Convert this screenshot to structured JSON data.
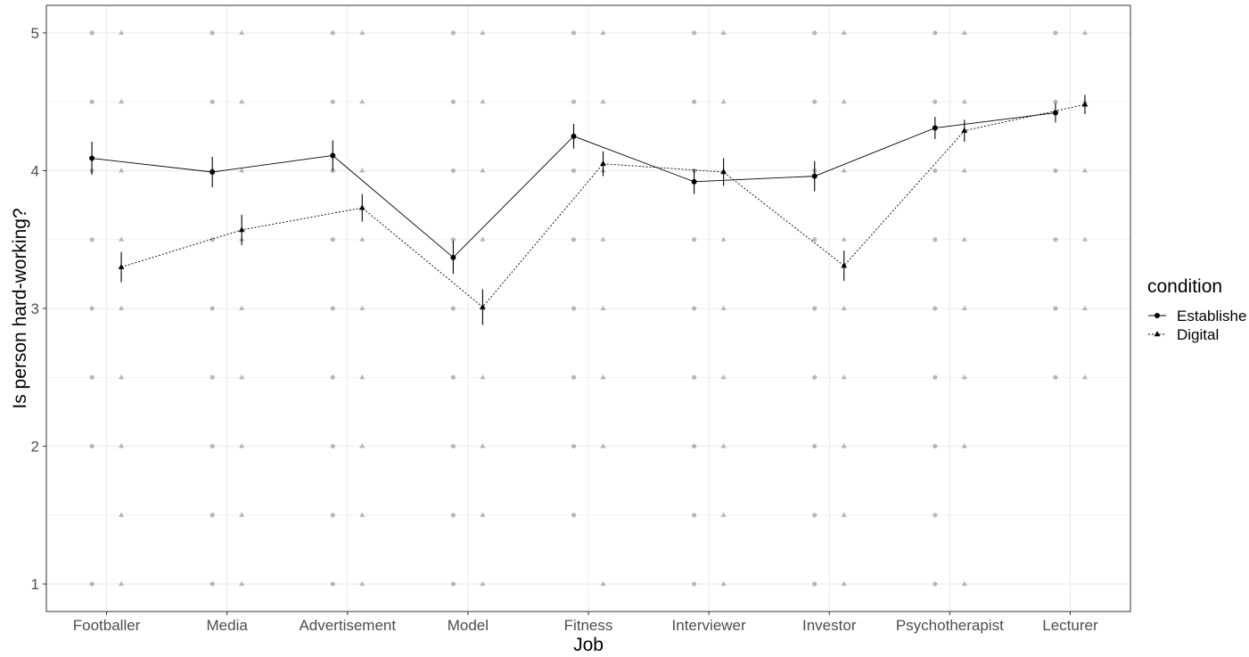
{
  "chart_data": {
    "type": "line",
    "title": "",
    "xlabel": "Job",
    "ylabel": "Is person hard-working?",
    "categories": [
      "Footballer",
      "Media",
      "Advertisement",
      "Model",
      "Fitness",
      "Interviewer",
      "Investor",
      "Psychotherapist",
      "Lecturer"
    ],
    "ylim": [
      0.8,
      5.2
    ],
    "yticks": [
      1,
      2,
      3,
      4,
      5
    ],
    "grid": true,
    "legend": {
      "title": "condition",
      "position": "right"
    },
    "series": [
      {
        "name": "Establishe",
        "marker": "circle",
        "line_style": "solid",
        "values": [
          4.09,
          3.99,
          4.11,
          3.37,
          4.25,
          3.92,
          3.96,
          4.31,
          4.42
        ],
        "error": [
          0.12,
          0.11,
          0.11,
          0.12,
          0.09,
          0.09,
          0.11,
          0.08,
          0.07
        ]
      },
      {
        "name": "Digital",
        "marker": "triangle",
        "line_style": "dotted",
        "values": [
          3.3,
          3.57,
          3.73,
          3.01,
          4.05,
          3.99,
          3.31,
          4.29,
          4.48
        ],
        "error": [
          0.11,
          0.11,
          0.1,
          0.13,
          0.09,
          0.1,
          0.11,
          0.08,
          0.07
        ]
      }
    ],
    "raw_points": {
      "Establishe": [
        [
          1,
          2,
          2.5,
          3,
          3.5,
          4,
          4.5,
          5
        ],
        [
          1,
          1.5,
          2,
          2.5,
          3,
          3.5,
          4,
          4.5,
          5
        ],
        [
          1,
          1.5,
          2,
          2.5,
          3,
          3.5,
          4,
          4.5,
          5
        ],
        [
          1,
          1.5,
          2,
          2.5,
          3,
          3.5,
          4,
          4.5,
          5
        ],
        [
          1.5,
          2,
          2.5,
          3,
          3.5,
          4,
          4.5,
          5
        ],
        [
          1,
          1.5,
          2,
          2.5,
          3,
          3.5,
          4,
          4.5,
          5
        ],
        [
          1,
          1.5,
          2,
          2.5,
          3,
          3.5,
          4,
          4.5,
          5
        ],
        [
          1,
          1.5,
          2,
          2.5,
          3,
          3.5,
          4,
          4.5,
          5
        ],
        [
          2.5,
          3,
          3.5,
          4,
          4.5,
          5
        ]
      ],
      "Digital": [
        [
          1,
          1.5,
          2,
          2.5,
          3,
          3.5,
          4,
          4.5,
          5
        ],
        [
          1,
          1.5,
          2,
          2.5,
          3,
          3.5,
          4,
          4.5,
          5
        ],
        [
          1,
          1.5,
          2,
          2.5,
          3,
          3.5,
          4,
          4.5,
          5
        ],
        [
          1,
          1.5,
          2,
          2.5,
          3,
          3.5,
          4,
          4.5,
          5
        ],
        [
          1,
          2,
          2.5,
          3,
          3.5,
          4,
          4.5,
          5
        ],
        [
          1,
          1.5,
          2,
          2.5,
          3,
          3.5,
          4,
          4.5,
          5
        ],
        [
          1,
          1.5,
          2,
          2.5,
          3,
          3.5,
          4,
          4.5,
          5
        ],
        [
          1,
          2,
          2.5,
          3,
          3.5,
          4,
          4.5,
          5
        ],
        [
          2.5,
          3,
          3.5,
          4,
          4.5,
          5
        ]
      ]
    },
    "colors": {
      "line": "#000000",
      "raw_point": "#7f7f7f",
      "grid": "#ebebeb",
      "panel_border": "#333333",
      "tick_text": "#4d4d4d"
    }
  }
}
